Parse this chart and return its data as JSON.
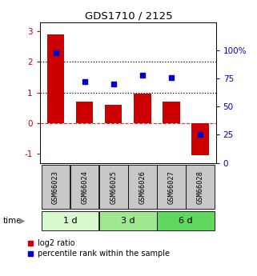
{
  "title": "GDS1710 / 2125",
  "samples": [
    "GSM66023",
    "GSM66024",
    "GSM66025",
    "GSM66026",
    "GSM66027",
    "GSM66028"
  ],
  "log2_ratio": [
    2.9,
    0.7,
    0.6,
    0.95,
    0.7,
    -1.05
  ],
  "percentile_rank": [
    98,
    72,
    70,
    78,
    76,
    25
  ],
  "bar_color": "#cc0000",
  "dot_color": "#0000cc",
  "ylim_left": [
    -1.3,
    3.3
  ],
  "ylim_right": [
    0,
    125
  ],
  "yticks_left": [
    -1,
    0,
    1,
    2,
    3
  ],
  "yticks_right": [
    0,
    25,
    50,
    75,
    100
  ],
  "ytick_labels_right": [
    "0",
    "25",
    "50",
    "75",
    "100%"
  ],
  "sample_box_color": "#c8c8c8",
  "group_colors": [
    "#d8f8d0",
    "#a0e890",
    "#60d860"
  ],
  "group_labels": [
    "1 d",
    "3 d",
    "6 d"
  ],
  "legend_labels": [
    "log2 ratio",
    "percentile rank within the sample"
  ]
}
